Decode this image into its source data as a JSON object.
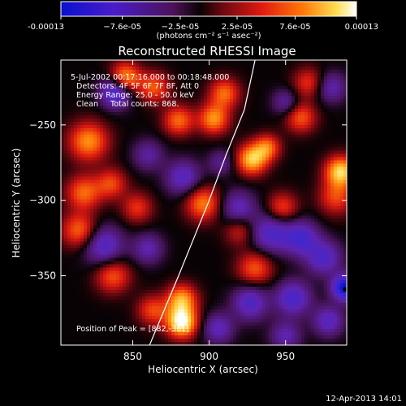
{
  "chart_data": {
    "type": "heatmap",
    "title": "Reconstructed RHESSI Image",
    "xlabel": "Heliocentric X (arcsec)",
    "ylabel": "Heliocentric Y (arcsec)",
    "xlim": [
      803,
      990
    ],
    "ylim": [
      -396,
      -207
    ],
    "x_ticks": [
      850,
      900,
      950
    ],
    "y_ticks": [
      -250,
      -300,
      -350
    ],
    "colorbar": {
      "colormap": "blue-purple-red-yellow-white",
      "range": [
        -0.00013,
        0.00013
      ],
      "tick_labels": [
        "-0.00013",
        "−7.6e-05",
        "−2.5e-05",
        "2.5e-05",
        "7.6e-05",
        "0.00013"
      ],
      "tick_values": [
        -0.00013,
        -7.6e-05,
        -2.5e-05,
        2.5e-05,
        7.6e-05,
        0.00013
      ],
      "unit_label": "(photons cm⁻² s⁻¹ asec⁻²)"
    },
    "annotations": [
      "5-Jul-2002 00:17:16.000 to 00:18:48.000",
      "Detectors: 4F 5F 6F 7F 8F, Att 0",
      "Energy Range: 25.0 - 50.0 keV",
      "Clean     Total counts: 868."
    ],
    "peak_label": "Position of Peak = [882,-381]",
    "peak": {
      "x": 882,
      "y": -381
    },
    "min_marker": {
      "x": 989,
      "y": -359
    },
    "limb_curve": [
      [
        861,
        -396
      ],
      [
        880,
        -350
      ],
      [
        900,
        -300
      ],
      [
        911,
        -270
      ],
      [
        923,
        -240
      ],
      [
        930,
        -207
      ]
    ],
    "blobs": [
      {
        "x": 882,
        "y": -381,
        "amp": 1.0,
        "s": 7
      },
      {
        "x": 882,
        "y": -366,
        "amp": 0.7,
        "s": 7
      },
      {
        "x": 986,
        "y": -281,
        "amp": 0.85,
        "s": 7
      },
      {
        "x": 983,
        "y": -298,
        "amp": 0.45,
        "s": 8
      },
      {
        "x": 928,
        "y": -273,
        "amp": 0.8,
        "s": 7
      },
      {
        "x": 938,
        "y": -265,
        "amp": 0.55,
        "s": 6
      },
      {
        "x": 845,
        "y": -219,
        "amp": 0.75,
        "s": 7
      },
      {
        "x": 864,
        "y": -225,
        "amp": 0.5,
        "s": 7
      },
      {
        "x": 903,
        "y": -246,
        "amp": 0.65,
        "s": 7
      },
      {
        "x": 910,
        "y": -229,
        "amp": 0.55,
        "s": 7
      },
      {
        "x": 880,
        "y": -247,
        "amp": 0.55,
        "s": 7
      },
      {
        "x": 896,
        "y": -302,
        "amp": 0.6,
        "s": 8
      },
      {
        "x": 821,
        "y": -261,
        "amp": 0.65,
        "s": 9
      },
      {
        "x": 818,
        "y": -295,
        "amp": 0.55,
        "s": 8
      },
      {
        "x": 836,
        "y": -289,
        "amp": 0.45,
        "s": 7
      },
      {
        "x": 815,
        "y": -320,
        "amp": 0.55,
        "s": 8
      },
      {
        "x": 837,
        "y": -350,
        "amp": 0.5,
        "s": 8
      },
      {
        "x": 863,
        "y": -373,
        "amp": 0.45,
        "s": 7
      },
      {
        "x": 930,
        "y": -345,
        "amp": 0.5,
        "s": 8
      },
      {
        "x": 960,
        "y": -245,
        "amp": 0.5,
        "s": 7
      },
      {
        "x": 948,
        "y": -305,
        "amp": 0.45,
        "s": 7
      },
      {
        "x": 965,
        "y": -222,
        "amp": 0.4,
        "s": 7
      },
      {
        "x": 920,
        "y": -320,
        "amp": 0.35,
        "s": 7
      },
      {
        "x": 853,
        "y": -305,
        "amp": 0.4,
        "s": 7
      },
      {
        "x": 839,
        "y": -228,
        "amp": -0.75,
        "s": 7
      },
      {
        "x": 831,
        "y": -330,
        "amp": -0.55,
        "s": 9
      },
      {
        "x": 883,
        "y": -285,
        "amp": -0.5,
        "s": 8
      },
      {
        "x": 919,
        "y": -305,
        "amp": -0.45,
        "s": 8
      },
      {
        "x": 940,
        "y": -322,
        "amp": -0.55,
        "s": 9
      },
      {
        "x": 960,
        "y": -325,
        "amp": -0.6,
        "s": 8
      },
      {
        "x": 927,
        "y": -368,
        "amp": -0.55,
        "s": 8
      },
      {
        "x": 955,
        "y": -365,
        "amp": -0.6,
        "s": 8
      },
      {
        "x": 989,
        "y": -358,
        "amp": -1.0,
        "s": 6
      },
      {
        "x": 975,
        "y": -338,
        "amp": -0.55,
        "s": 8
      },
      {
        "x": 978,
        "y": -380,
        "amp": -0.5,
        "s": 7
      },
      {
        "x": 950,
        "y": -390,
        "amp": -0.4,
        "s": 7
      },
      {
        "x": 906,
        "y": -385,
        "amp": -0.45,
        "s": 7
      },
      {
        "x": 860,
        "y": -332,
        "amp": -0.4,
        "s": 7
      },
      {
        "x": 980,
        "y": -225,
        "amp": -0.4,
        "s": 7
      },
      {
        "x": 950,
        "y": -235,
        "amp": -0.35,
        "s": 6
      },
      {
        "x": 908,
        "y": -275,
        "amp": -0.3,
        "s": 6
      },
      {
        "x": 860,
        "y": -270,
        "amp": -0.35,
        "s": 7
      }
    ]
  },
  "footer": {
    "timestamp": "12-Apr-2013 14:01"
  }
}
